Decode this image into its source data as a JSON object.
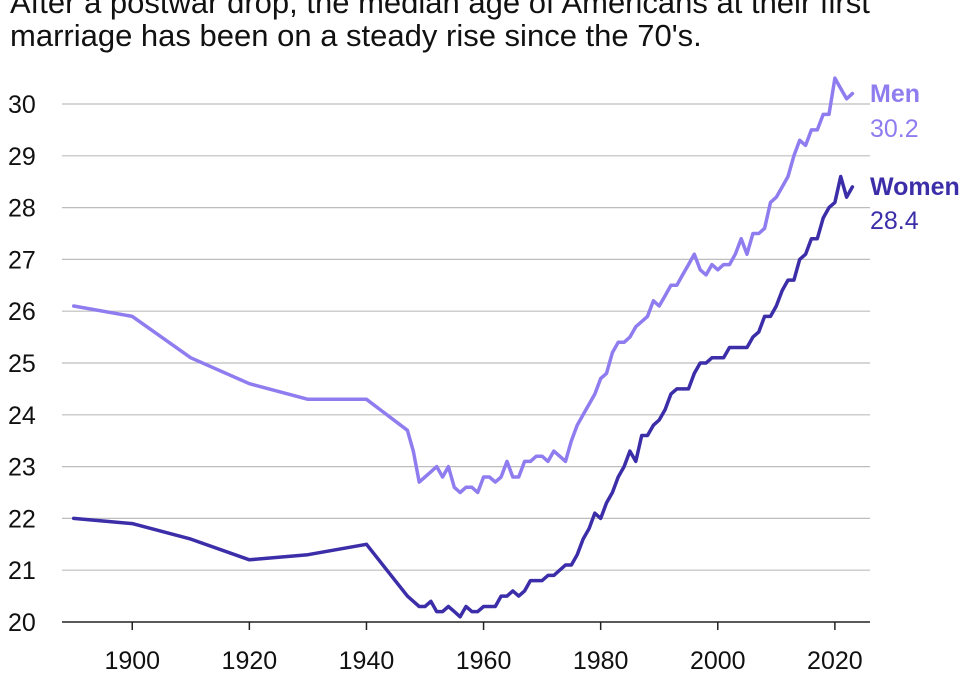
{
  "subtitle": "After a postwar drop, the median age of Americans at their first marriage has been on a steady rise since the 70's.",
  "chart_data": {
    "type": "line",
    "title": "",
    "subtitle": "After a postwar drop, the median age of Americans at their first marriage has been on a steady rise since the 70's.",
    "xlabel": "",
    "ylabel": "",
    "xlim": [
      1888,
      2026
    ],
    "ylim": [
      20,
      30
    ],
    "xticks": [
      1900,
      1920,
      1940,
      1960,
      1980,
      2000,
      2020
    ],
    "yticks": [
      20,
      21,
      22,
      23,
      24,
      25,
      26,
      27,
      28,
      29,
      30
    ],
    "grid": "horizontal",
    "series": [
      {
        "name": "Men",
        "color": "#8f7df0",
        "end_label": "30.2",
        "x": [
          1890,
          1900,
          1910,
          1920,
          1930,
          1940,
          1947,
          1948,
          1949,
          1950,
          1951,
          1952,
          1953,
          1954,
          1955,
          1956,
          1957,
          1958,
          1959,
          1960,
          1961,
          1962,
          1963,
          1964,
          1965,
          1966,
          1967,
          1968,
          1969,
          1970,
          1971,
          1972,
          1973,
          1974,
          1975,
          1976,
          1977,
          1978,
          1979,
          1980,
          1981,
          1982,
          1983,
          1984,
          1985,
          1986,
          1987,
          1988,
          1989,
          1990,
          1991,
          1992,
          1993,
          1994,
          1995,
          1996,
          1997,
          1998,
          1999,
          2000,
          2001,
          2002,
          2003,
          2004,
          2005,
          2006,
          2007,
          2008,
          2009,
          2010,
          2011,
          2012,
          2013,
          2014,
          2015,
          2016,
          2017,
          2018,
          2019,
          2020,
          2021,
          2022,
          2023
        ],
        "y": [
          26.1,
          25.9,
          25.1,
          24.6,
          24.3,
          24.3,
          23.7,
          23.3,
          22.7,
          22.8,
          22.9,
          23.0,
          22.8,
          23.0,
          22.6,
          22.5,
          22.6,
          22.6,
          22.5,
          22.8,
          22.8,
          22.7,
          22.8,
          23.1,
          22.8,
          22.8,
          23.1,
          23.1,
          23.2,
          23.2,
          23.1,
          23.3,
          23.2,
          23.1,
          23.5,
          23.8,
          24.0,
          24.2,
          24.4,
          24.7,
          24.8,
          25.2,
          25.4,
          25.4,
          25.5,
          25.7,
          25.8,
          25.9,
          26.2,
          26.1,
          26.3,
          26.5,
          26.5,
          26.7,
          26.9,
          27.1,
          26.8,
          26.7,
          26.9,
          26.8,
          26.9,
          26.9,
          27.1,
          27.4,
          27.1,
          27.5,
          27.5,
          27.6,
          28.1,
          28.2,
          28.4,
          28.6,
          29.0,
          29.3,
          29.2,
          29.5,
          29.5,
          29.8,
          29.8,
          30.5,
          30.3,
          30.1,
          30.2
        ]
      },
      {
        "name": "Women",
        "color": "#3c2ea8",
        "end_label": "28.4",
        "x": [
          1890,
          1900,
          1910,
          1920,
          1930,
          1940,
          1947,
          1948,
          1949,
          1950,
          1951,
          1952,
          1953,
          1954,
          1955,
          1956,
          1957,
          1958,
          1959,
          1960,
          1961,
          1962,
          1963,
          1964,
          1965,
          1966,
          1967,
          1968,
          1969,
          1970,
          1971,
          1972,
          1973,
          1974,
          1975,
          1976,
          1977,
          1978,
          1979,
          1980,
          1981,
          1982,
          1983,
          1984,
          1985,
          1986,
          1987,
          1988,
          1989,
          1990,
          1991,
          1992,
          1993,
          1994,
          1995,
          1996,
          1997,
          1998,
          1999,
          2000,
          2001,
          2002,
          2003,
          2004,
          2005,
          2006,
          2007,
          2008,
          2009,
          2010,
          2011,
          2012,
          2013,
          2014,
          2015,
          2016,
          2017,
          2018,
          2019,
          2020,
          2021,
          2022,
          2023
        ],
        "y": [
          22.0,
          21.9,
          21.6,
          21.2,
          21.3,
          21.5,
          20.5,
          20.4,
          20.3,
          20.3,
          20.4,
          20.2,
          20.2,
          20.3,
          20.2,
          20.1,
          20.3,
          20.2,
          20.2,
          20.3,
          20.3,
          20.3,
          20.5,
          20.5,
          20.6,
          20.5,
          20.6,
          20.8,
          20.8,
          20.8,
          20.9,
          20.9,
          21.0,
          21.1,
          21.1,
          21.3,
          21.6,
          21.8,
          22.1,
          22.0,
          22.3,
          22.5,
          22.8,
          23.0,
          23.3,
          23.1,
          23.6,
          23.6,
          23.8,
          23.9,
          24.1,
          24.4,
          24.5,
          24.5,
          24.5,
          24.8,
          25.0,
          25.0,
          25.1,
          25.1,
          25.1,
          25.3,
          25.3,
          25.3,
          25.3,
          25.5,
          25.6,
          25.9,
          25.9,
          26.1,
          26.4,
          26.6,
          26.6,
          27.0,
          27.1,
          27.4,
          27.4,
          27.8,
          28.0,
          28.1,
          28.6,
          28.2,
          28.4
        ]
      }
    ]
  }
}
